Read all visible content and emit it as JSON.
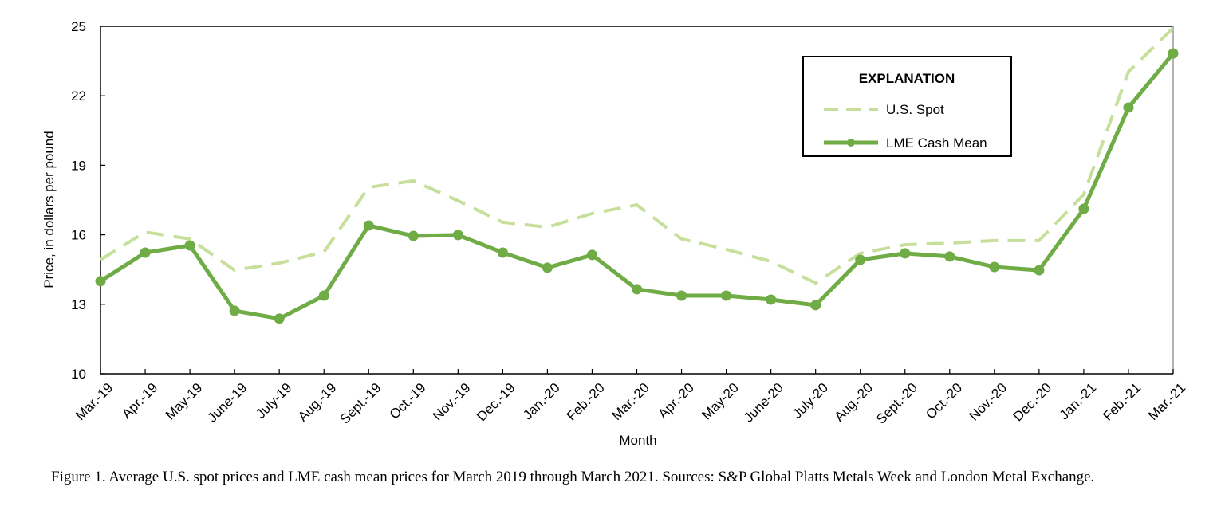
{
  "chart_data": {
    "type": "line",
    "x_label": "Month",
    "y_label": "Price, in dollars per pound",
    "legend_title": "EXPLANATION",
    "legend_position": "upper right",
    "categories": [
      "Mar.-19",
      "Apr.-19",
      "May-19",
      "June-19",
      "July-19",
      "Aug.-19",
      "Sept.-19",
      "Oct.-19",
      "Nov.-19",
      "Dec.-19",
      "Jan.-20",
      "Feb.-20",
      "Mar.-20",
      "Apr.-20",
      "May-20",
      "June-20",
      "July-20",
      "Aug.-20",
      "Sept.-20",
      "Oct.-20",
      "Nov.-20",
      "Dec.-20",
      "Jan.-21",
      "Feb.-21",
      "Mar.-21"
    ],
    "series": [
      {
        "name": "U.S. Spot",
        "color": "#c6e09c",
        "dashed": true,
        "markers": false,
        "values": [
          14.92,
          16.12,
          15.82,
          14.47,
          14.78,
          15.26,
          18.05,
          18.33,
          17.47,
          16.54,
          16.33,
          16.92,
          17.29,
          15.82,
          15.37,
          14.85,
          13.92,
          15.2,
          15.57,
          15.64,
          15.75,
          15.75,
          17.74,
          23.04,
          24.93
        ]
      },
      {
        "name": "LME Cash Mean",
        "color": "#6fac46",
        "dashed": false,
        "markers": true,
        "values": [
          14.0,
          15.23,
          15.54,
          12.72,
          12.38,
          13.37,
          16.4,
          15.95,
          15.99,
          15.23,
          14.58,
          15.13,
          13.65,
          13.37,
          13.37,
          13.2,
          12.96,
          14.92,
          15.2,
          15.06,
          14.61,
          14.47,
          17.12,
          21.49,
          23.83
        ]
      }
    ],
    "ylim": [
      10,
      25
    ],
    "yticks": [
      10,
      13,
      16,
      19,
      22,
      25
    ],
    "grid": false
  },
  "caption": "Figure 1. Average U.S. spot prices and LME cash mean prices for March 2019 through March 2021. Sources: S&P Global Platts Metals Week and London Metal Exchange."
}
